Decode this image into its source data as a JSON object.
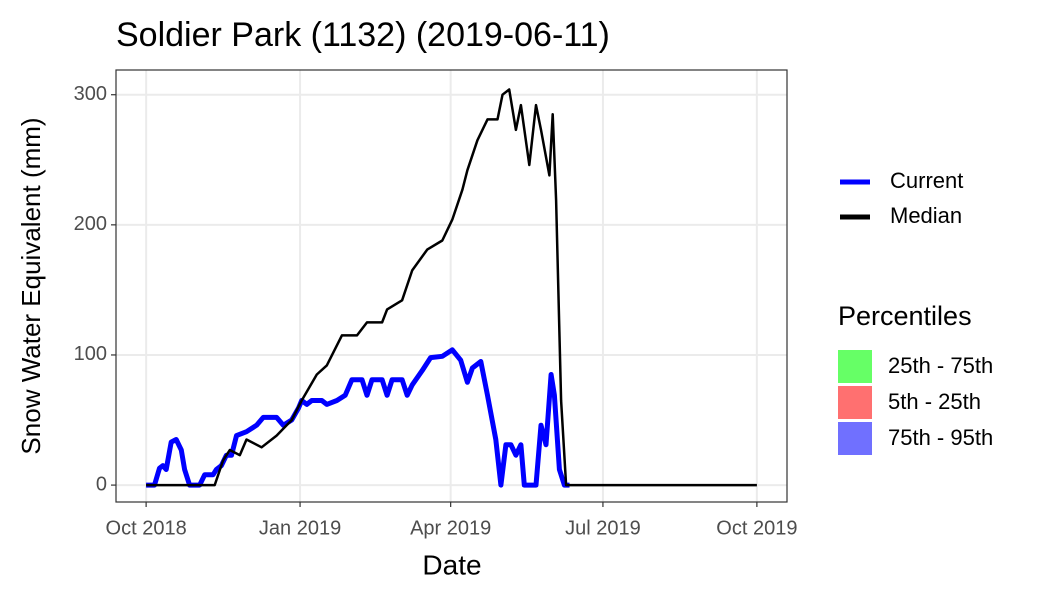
{
  "chart_data": {
    "type": "line",
    "title": "Soldier Park (1132) (2019-06-11)",
    "x_label": "Date",
    "y_label": "Snow Water Equivalent (mm)",
    "xlim": [
      "2018-09-13",
      "2019-10-19"
    ],
    "xticks": [
      {
        "value": "2018-10-01",
        "label": "Oct 2018"
      },
      {
        "value": "2019-01-01",
        "label": "Jan 2019"
      },
      {
        "value": "2019-04-01",
        "label": "Apr 2019"
      },
      {
        "value": "2019-07-01",
        "label": "Jul 2019"
      },
      {
        "value": "2019-10-01",
        "label": "Oct 2019"
      }
    ],
    "ylim": [
      -13,
      319
    ],
    "yticks": [
      0,
      100,
      200,
      300
    ],
    "grid": true,
    "series": [
      {
        "name": "Current",
        "color": "#0000ff",
        "x": [
          "2018-10-01",
          "2018-10-06",
          "2018-10-09",
          "2018-10-11",
          "2018-10-13",
          "2018-10-16",
          "2018-10-19",
          "2018-10-22",
          "2018-10-24",
          "2018-10-27",
          "2018-11-02",
          "2018-11-05",
          "2018-11-10",
          "2018-11-12",
          "2018-11-15",
          "2018-11-18",
          "2018-11-21",
          "2018-11-24",
          "2018-11-30",
          "2018-12-06",
          "2018-12-10",
          "2018-12-18",
          "2018-12-22",
          "2018-12-27",
          "2018-12-31",
          "2019-01-02",
          "2019-01-05",
          "2019-01-08",
          "2019-01-14",
          "2019-01-17",
          "2019-01-23",
          "2019-01-28",
          "2019-02-01",
          "2019-02-07",
          "2019-02-10",
          "2019-02-13",
          "2019-02-19",
          "2019-02-22",
          "2019-02-25",
          "2019-03-03",
          "2019-03-06",
          "2019-03-09",
          "2019-03-15",
          "2019-03-20",
          "2019-03-27",
          "2019-04-02",
          "2019-04-07",
          "2019-04-11",
          "2019-04-14",
          "2019-04-19",
          "2019-04-23",
          "2019-04-28",
          "2019-05-01",
          "2019-05-04",
          "2019-05-07",
          "2019-05-10",
          "2019-05-13",
          "2019-05-15",
          "2019-05-22",
          "2019-05-25",
          "2019-05-28",
          "2019-05-31",
          "2019-06-02",
          "2019-06-05",
          "2019-06-08",
          "2019-06-11"
        ],
        "values": [
          0,
          0,
          13,
          15,
          12,
          33,
          35,
          27,
          12,
          0,
          0,
          8,
          8,
          12,
          15,
          23,
          23,
          38,
          41,
          46,
          52,
          52,
          46,
          50,
          59,
          65,
          62,
          65,
          65,
          62,
          65,
          69,
          81,
          81,
          69,
          81,
          81,
          69,
          81,
          81,
          69,
          77,
          88,
          98,
          99,
          104,
          96,
          79,
          90,
          95,
          69,
          35,
          0,
          31,
          31,
          23,
          31,
          0,
          0,
          46,
          31,
          85,
          69,
          12,
          0,
          0
        ]
      },
      {
        "name": "Median",
        "color": "#000000",
        "x": [
          "2018-10-01",
          "2018-11-11",
          "2018-11-16",
          "2018-11-20",
          "2018-11-26",
          "2018-11-30",
          "2018-12-09",
          "2018-12-18",
          "2018-12-27",
          "2019-01-02",
          "2019-01-11",
          "2019-01-17",
          "2019-01-26",
          "2019-02-04",
          "2019-02-10",
          "2019-02-19",
          "2019-02-22",
          "2019-03-03",
          "2019-03-09",
          "2019-03-18",
          "2019-03-27",
          "2019-04-02",
          "2019-04-08",
          "2019-04-11",
          "2019-04-17",
          "2019-04-23",
          "2019-04-29",
          "2019-05-02",
          "2019-05-06",
          "2019-05-10",
          "2019-05-13",
          "2019-05-18",
          "2019-05-22",
          "2019-05-25",
          "2019-05-30",
          "2019-06-01",
          "2019-06-03",
          "2019-06-06",
          "2019-06-09",
          "2019-10-01"
        ],
        "values": [
          0,
          0,
          19,
          27,
          23,
          35,
          29,
          38,
          50,
          65,
          85,
          92,
          115,
          115,
          125,
          125,
          135,
          142,
          165,
          181,
          188,
          204,
          227,
          242,
          265,
          281,
          281,
          300,
          304,
          273,
          292,
          246,
          292,
          273,
          238,
          285,
          219,
          65,
          0,
          0
        ]
      }
    ],
    "percentile_legend": {
      "title": "Percentiles",
      "items": [
        {
          "name": "25th - 75th",
          "color": "#66ff66"
        },
        {
          "name": "5th - 25th",
          "color": "#ff7070"
        },
        {
          "name": "75th - 95th",
          "color": "#7070ff"
        }
      ]
    }
  }
}
